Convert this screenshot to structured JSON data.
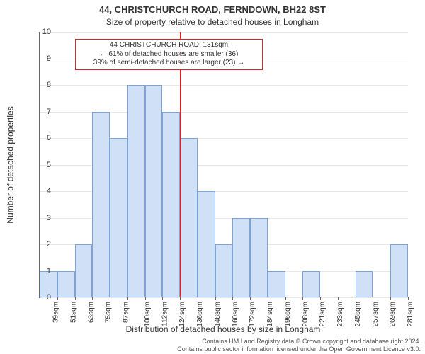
{
  "chart": {
    "type": "histogram",
    "title": "44, CHRISTCHURCH ROAD, FERNDOWN, BH22 8ST",
    "subtitle": "Size of property relative to detached houses in Longham",
    "ylabel": "Number of detached properties",
    "xlabel": "Distribution of detached houses by size in Longham",
    "title_fontsize": 13,
    "subtitle_fontsize": 12,
    "label_fontsize": 12,
    "tick_fontsize": 10,
    "background_color": "#ffffff",
    "grid_color": "#e8e8e8",
    "axis_color": "#666666",
    "text_color": "#333333",
    "bar_fill": "#cfe0f7",
    "bar_border": "#7da3d9",
    "bar_width": 1.0,
    "ylim": [
      0,
      10
    ],
    "ytick_step": 1,
    "categories": [
      "39sqm",
      "51sqm",
      "63sqm",
      "75sqm",
      "87sqm",
      "100sqm",
      "112sqm",
      "124sqm",
      "136sqm",
      "148sqm",
      "160sqm",
      "172sqm",
      "184sqm",
      "196sqm",
      "208sqm",
      "221sqm",
      "233sqm",
      "245sqm",
      "257sqm",
      "269sqm",
      "281sqm"
    ],
    "values": [
      1,
      1,
      2,
      7,
      6,
      8,
      8,
      7,
      6,
      4,
      2,
      3,
      3,
      1,
      0,
      1,
      0,
      0,
      1,
      0,
      2
    ],
    "marker": {
      "color": "#d92424",
      "bin_label": "136sqm",
      "position_in_bin": 0.0
    },
    "annotation": {
      "border_color": "#d92424",
      "lines": [
        "44 CHRISTCHURCH ROAD: 131sqm",
        "← 61% of detached houses are smaller (36)",
        "39% of semi-detached houses are larger (23) →"
      ]
    },
    "footer": {
      "line1": "Contains HM Land Registry data © Crown copyright and database right 2024.",
      "line2": "Contains public sector information licensed under the Open Government Licence v3.0."
    }
  }
}
